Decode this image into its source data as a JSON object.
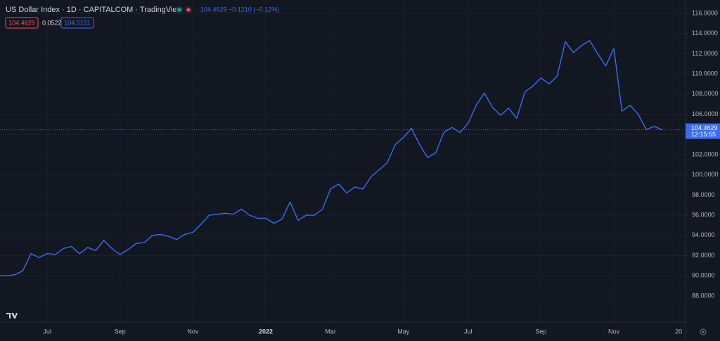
{
  "header": {
    "title": "US Dollar Index · 1D · CAPITALCOM · TradingView",
    "quote": "104.4629 −0.1210 (−0.12%)",
    "ohlc_values": [
      "104.4629",
      "0.0522",
      "104.5151"
    ]
  },
  "chart_data": {
    "type": "line",
    "categories": [
      null,
      null,
      null,
      null,
      null,
      null,
      "Jul",
      null,
      null,
      null,
      null,
      null,
      null,
      null,
      null,
      "Sep",
      null,
      null,
      null,
      null,
      null,
      null,
      null,
      null,
      "Nov",
      null,
      null,
      null,
      null,
      null,
      null,
      null,
      null,
      "2022",
      null,
      null,
      null,
      null,
      null,
      null,
      null,
      "Mar",
      null,
      null,
      null,
      null,
      null,
      null,
      null,
      null,
      "May",
      null,
      null,
      null,
      null,
      null,
      null,
      null,
      "Jul",
      null,
      null,
      null,
      null,
      null,
      null,
      null,
      null,
      "Sep",
      null,
      null,
      null,
      null,
      null,
      null,
      null,
      null,
      "Nov",
      null,
      null,
      null,
      null,
      null,
      null,
      null,
      "20"
    ],
    "series": [
      {
        "name": "US Dollar Index",
        "color": "#3b6cf0",
        "values": [
          90.0,
          90.0,
          90.1,
          90.5,
          92.2,
          91.8,
          92.2,
          92.1,
          92.7,
          92.9,
          92.2,
          92.8,
          92.5,
          93.5,
          92.7,
          92.1,
          92.6,
          93.2,
          93.3,
          94.0,
          94.1,
          93.9,
          93.6,
          94.1,
          94.3,
          95.1,
          96.0,
          96.1,
          96.2,
          96.1,
          96.6,
          96.0,
          95.7,
          95.7,
          95.2,
          95.6,
          97.3,
          95.5,
          96.0,
          96.0,
          96.6,
          98.6,
          99.1,
          98.2,
          98.8,
          98.6,
          99.8,
          100.5,
          101.2,
          103.0,
          103.7,
          104.6,
          103.0,
          101.7,
          102.2,
          104.2,
          104.7,
          104.2,
          105.1,
          106.9,
          108.1,
          106.7,
          105.9,
          106.6,
          105.6,
          108.2,
          108.8,
          109.6,
          109.0,
          109.8,
          113.2,
          112.1,
          112.8,
          113.3,
          112.0,
          110.8,
          112.5,
          106.3,
          106.9,
          106.0,
          104.5,
          104.8,
          104.4629,
          null,
          null
        ]
      }
    ],
    "ylim": [
      85.42,
      117.32
    ],
    "yticks": [
      {
        "value": 88,
        "label": "88.0000"
      },
      {
        "value": 90,
        "label": "90.0000"
      },
      {
        "value": 92,
        "label": "92.0000"
      },
      {
        "value": 94,
        "label": "94.0000"
      },
      {
        "value": 96,
        "label": "96.0000"
      },
      {
        "value": 98,
        "label": "98.0000"
      },
      {
        "value": 100,
        "label": "100.0000"
      },
      {
        "value": 102,
        "label": "102.0000"
      },
      {
        "value": 104,
        "label": "104.0000"
      },
      {
        "value": 106,
        "label": "106.0000"
      },
      {
        "value": 108,
        "label": "108.0000"
      },
      {
        "value": 110,
        "label": "110.0000"
      },
      {
        "value": 112,
        "label": "112.0000"
      },
      {
        "value": 114,
        "label": "114.0000"
      },
      {
        "value": 116,
        "label": "116.0000"
      }
    ],
    "last_price": 104.4629,
    "countdown": "12:15:55",
    "grid": true
  }
}
